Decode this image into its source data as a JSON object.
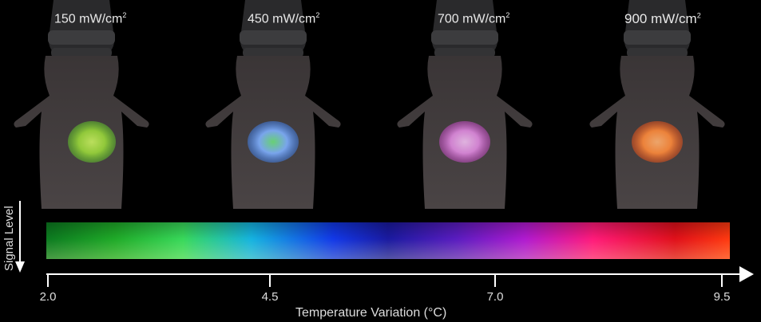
{
  "panels": [
    {
      "label_value": "150 mW/cm",
      "label_sup": "2",
      "spot_colors": [
        "#9ad83a",
        "#5fbf2a",
        "#c8f060"
      ]
    },
    {
      "label_value": "450 mW/cm",
      "label_sup": "2",
      "spot_colors": [
        "#7fb0ff",
        "#3f7be0",
        "#6ce07a"
      ]
    },
    {
      "label_value": "700 mW/cm",
      "label_sup": "2",
      "spot_colors": [
        "#e08ae0",
        "#c04ac0",
        "#f0c0f0"
      ]
    },
    {
      "label_value": "900 mW/cm",
      "label_sup": "2",
      "spot_colors": [
        "#ff8a3a",
        "#e0501a",
        "#ffb070"
      ]
    }
  ],
  "colorbar": {
    "y_label": "Signal Level",
    "x_title": "Temperature Variation (°C)",
    "ticks": [
      "2.0",
      "4.5",
      "7.0",
      "9.5"
    ]
  }
}
